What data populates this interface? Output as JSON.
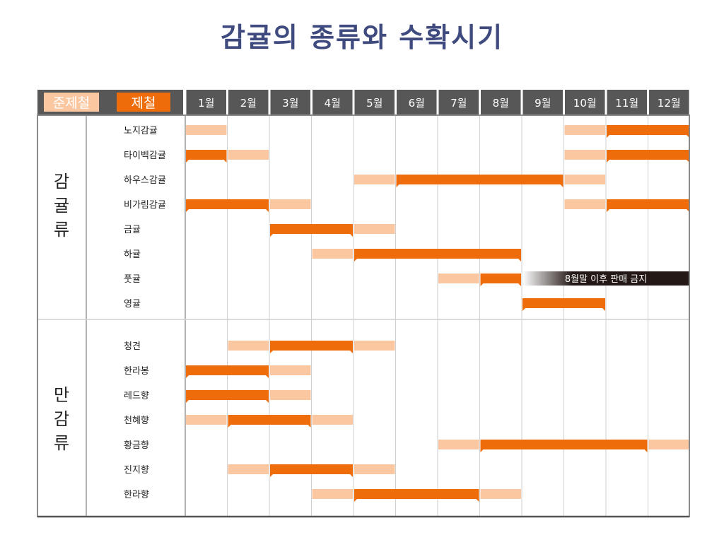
{
  "title": "감귤의 종류와 수확시기",
  "colors": {
    "title": "#3f4a7e",
    "header_bg": "#575757",
    "header_text": "#ffffff",
    "jun_bar": "#fbc7a1",
    "main_bar": "#ef6c0a",
    "grid_line": "#cfcfcf",
    "frame": "#555555",
    "ban_dark": "#231815"
  },
  "legend": {
    "jun_label": "준제철",
    "main_label": "제철"
  },
  "chart_data": {
    "type": "gantt",
    "x_categories": [
      "1월",
      "2월",
      "3월",
      "4월",
      "5월",
      "6월",
      "7월",
      "8월",
      "9월",
      "10월",
      "11월",
      "12월"
    ],
    "x_unit": "month",
    "groups": [
      {
        "name": "감귤류",
        "items": [
          {
            "name": "노지감귤",
            "jun": [
              [
                1,
                1
              ],
              [
                10,
                10
              ]
            ],
            "main": [
              [
                11,
                12
              ]
            ]
          },
          {
            "name": "타이벡감귤",
            "jun": [
              [
                2,
                2
              ],
              [
                10,
                10
              ]
            ],
            "main": [
              [
                1,
                1
              ],
              [
                11,
                12
              ]
            ]
          },
          {
            "name": "하우스감귤",
            "jun": [
              [
                5,
                5
              ],
              [
                10,
                10
              ]
            ],
            "main": [
              [
                6,
                9
              ]
            ]
          },
          {
            "name": "비가림감귤",
            "jun": [
              [
                3,
                3
              ],
              [
                10,
                10
              ]
            ],
            "main": [
              [
                1,
                2
              ],
              [
                11,
                12
              ]
            ]
          },
          {
            "name": "금귤",
            "jun": [
              [
                5,
                5
              ]
            ],
            "main": [
              [
                3,
                4
              ]
            ]
          },
          {
            "name": "하귤",
            "jun": [
              [
                4,
                4
              ]
            ],
            "main": [
              [
                5,
                8
              ]
            ]
          },
          {
            "name": "풋귤",
            "jun": [
              [
                7,
                7
              ]
            ],
            "main": [
              [
                8,
                8
              ]
            ],
            "ban": {
              "from": 9,
              "to": 12,
              "label": "8월말 이후 판매 금지"
            }
          },
          {
            "name": "영귤",
            "jun": [],
            "main": [
              [
                9,
                10
              ]
            ]
          }
        ]
      },
      {
        "name": "만감류",
        "items": [
          {
            "name": "청견",
            "jun": [
              [
                2,
                2
              ],
              [
                5,
                5
              ]
            ],
            "main": [
              [
                3,
                4
              ]
            ]
          },
          {
            "name": "한라봉",
            "jun": [
              [
                3,
                3
              ]
            ],
            "main": [
              [
                1,
                2
              ]
            ]
          },
          {
            "name": "레드향",
            "jun": [
              [
                3,
                3
              ]
            ],
            "main": [
              [
                1,
                2
              ]
            ]
          },
          {
            "name": "천혜향",
            "jun": [
              [
                1,
                1
              ],
              [
                4,
                4
              ]
            ],
            "main": [
              [
                2,
                3
              ]
            ]
          },
          {
            "name": "황금향",
            "jun": [
              [
                7,
                7
              ],
              [
                12,
                12
              ]
            ],
            "main": [
              [
                8,
                11
              ]
            ]
          },
          {
            "name": "진지향",
            "jun": [
              [
                2,
                2
              ],
              [
                5,
                5
              ]
            ],
            "main": [
              [
                3,
                4
              ]
            ]
          },
          {
            "name": "한라향",
            "jun": [
              [
                4,
                4
              ],
              [
                8,
                8
              ]
            ],
            "main": [
              [
                5,
                7
              ]
            ]
          }
        ]
      }
    ]
  }
}
